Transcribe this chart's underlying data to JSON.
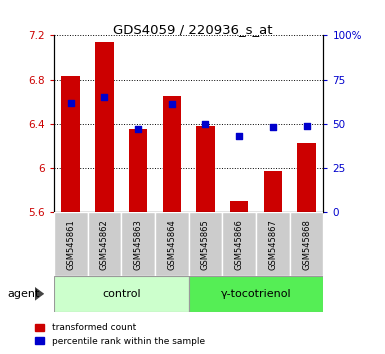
{
  "title": "GDS4059 / 220936_s_at",
  "samples": [
    "GSM545861",
    "GSM545862",
    "GSM545863",
    "GSM545864",
    "GSM545865",
    "GSM545866",
    "GSM545867",
    "GSM545868"
  ],
  "red_values": [
    6.83,
    7.14,
    6.35,
    6.65,
    6.38,
    5.7,
    5.97,
    6.23
  ],
  "blue_values": [
    62,
    65,
    47,
    61,
    50,
    43,
    48,
    49
  ],
  "ylim_left": [
    5.6,
    7.2
  ],
  "ylim_right": [
    0,
    100
  ],
  "yticks_left": [
    5.6,
    6.0,
    6.4,
    6.8,
    7.2
  ],
  "yticks_right": [
    0,
    25,
    50,
    75,
    100
  ],
  "ytick_labels_left": [
    "5.6",
    "6",
    "6.4",
    "6.8",
    "7.2"
  ],
  "ytick_labels_right": [
    "0",
    "25",
    "50",
    "75",
    "100%"
  ],
  "group_labels": [
    "control",
    "γ-tocotrienol"
  ],
  "bar_color": "#cc0000",
  "dot_color": "#0000cc",
  "bar_width": 0.55,
  "xlabel_label": "agent",
  "legend_red": "transformed count",
  "legend_blue": "percentile rank within the sample",
  "left_tick_color": "#cc0000",
  "right_tick_color": "#0000cc",
  "control_bg": "#ccffcc",
  "gamma_bg": "#55ee55",
  "sample_bg": "#cccccc"
}
